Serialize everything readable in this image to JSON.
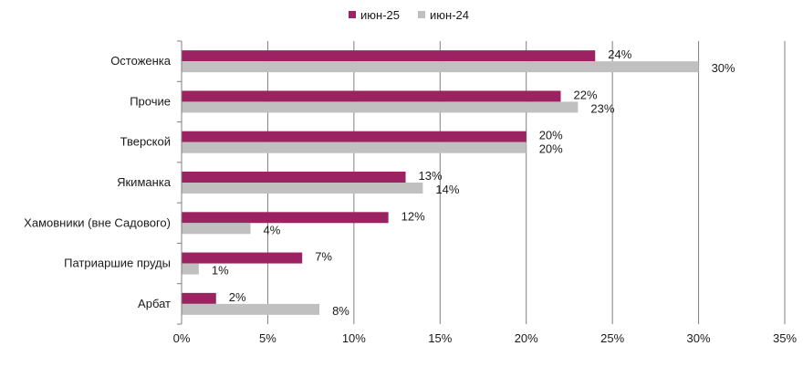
{
  "chart_data": {
    "type": "bar",
    "orientation": "horizontal",
    "categories": [
      "Остоженка",
      "Прочие",
      "Тверской",
      "Якиманка",
      "Хамовники (вне Садового)",
      "Патриаршие пруды",
      "Арбат"
    ],
    "series": [
      {
        "name": "июн-25",
        "color": "#9b2361",
        "values": [
          24,
          22,
          20,
          13,
          12,
          7,
          2
        ],
        "labels": [
          "24%",
          "22%",
          "20%",
          "13%",
          "12%",
          "7%",
          "2%"
        ]
      },
      {
        "name": "июн-24",
        "color": "#c0c0c0",
        "values": [
          30,
          23,
          20,
          14,
          4,
          1,
          8
        ],
        "labels": [
          "30%",
          "23%",
          "20%",
          "14%",
          "4%",
          "1%",
          "8%"
        ]
      }
    ],
    "x_ticks": [
      "0%",
      "5%",
      "10%",
      "15%",
      "20%",
      "25%",
      "30%",
      "35%"
    ],
    "xlim": [
      0,
      35
    ],
    "grid": "vertical",
    "legend_position": "top-center"
  }
}
